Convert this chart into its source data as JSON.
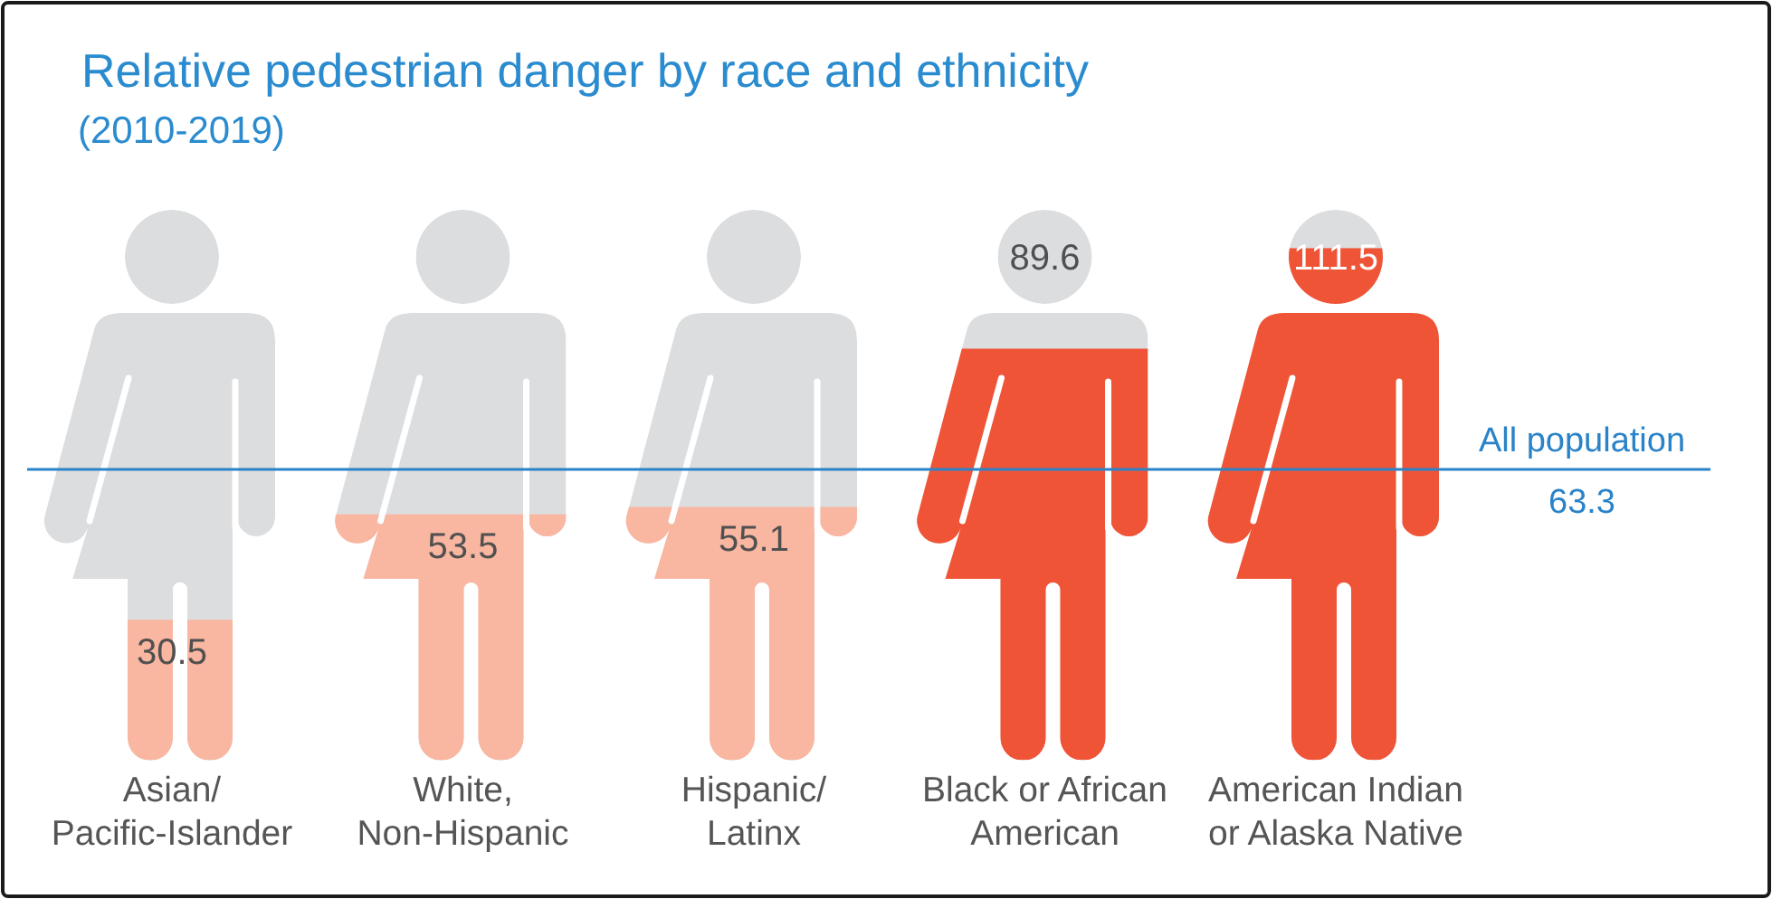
{
  "chart_data": {
    "type": "bar",
    "title": "Relative pedestrian danger by race and ethnicity",
    "subtitle": "(2010-2019)",
    "categories": [
      "Asian/\nPacific-Islander",
      "White,\nNon-Hispanic",
      "Hispanic/\nLatinx",
      "Black or African\nAmerican",
      "American Indian\nor Alaska Native"
    ],
    "values": [
      30.5,
      53.5,
      55.1,
      89.6,
      111.5
    ],
    "colors": [
      "#f9b6a0",
      "#f9b6a0",
      "#f9b6a0",
      "#f05437",
      "#f05437"
    ],
    "tick_labels": "x",
    "data_labels": true,
    "ref_lines": [
      {
        "axis": "y",
        "value": 63.3,
        "label": "All population\n63.3",
        "color": "#2a83c8"
      }
    ]
  }
}
